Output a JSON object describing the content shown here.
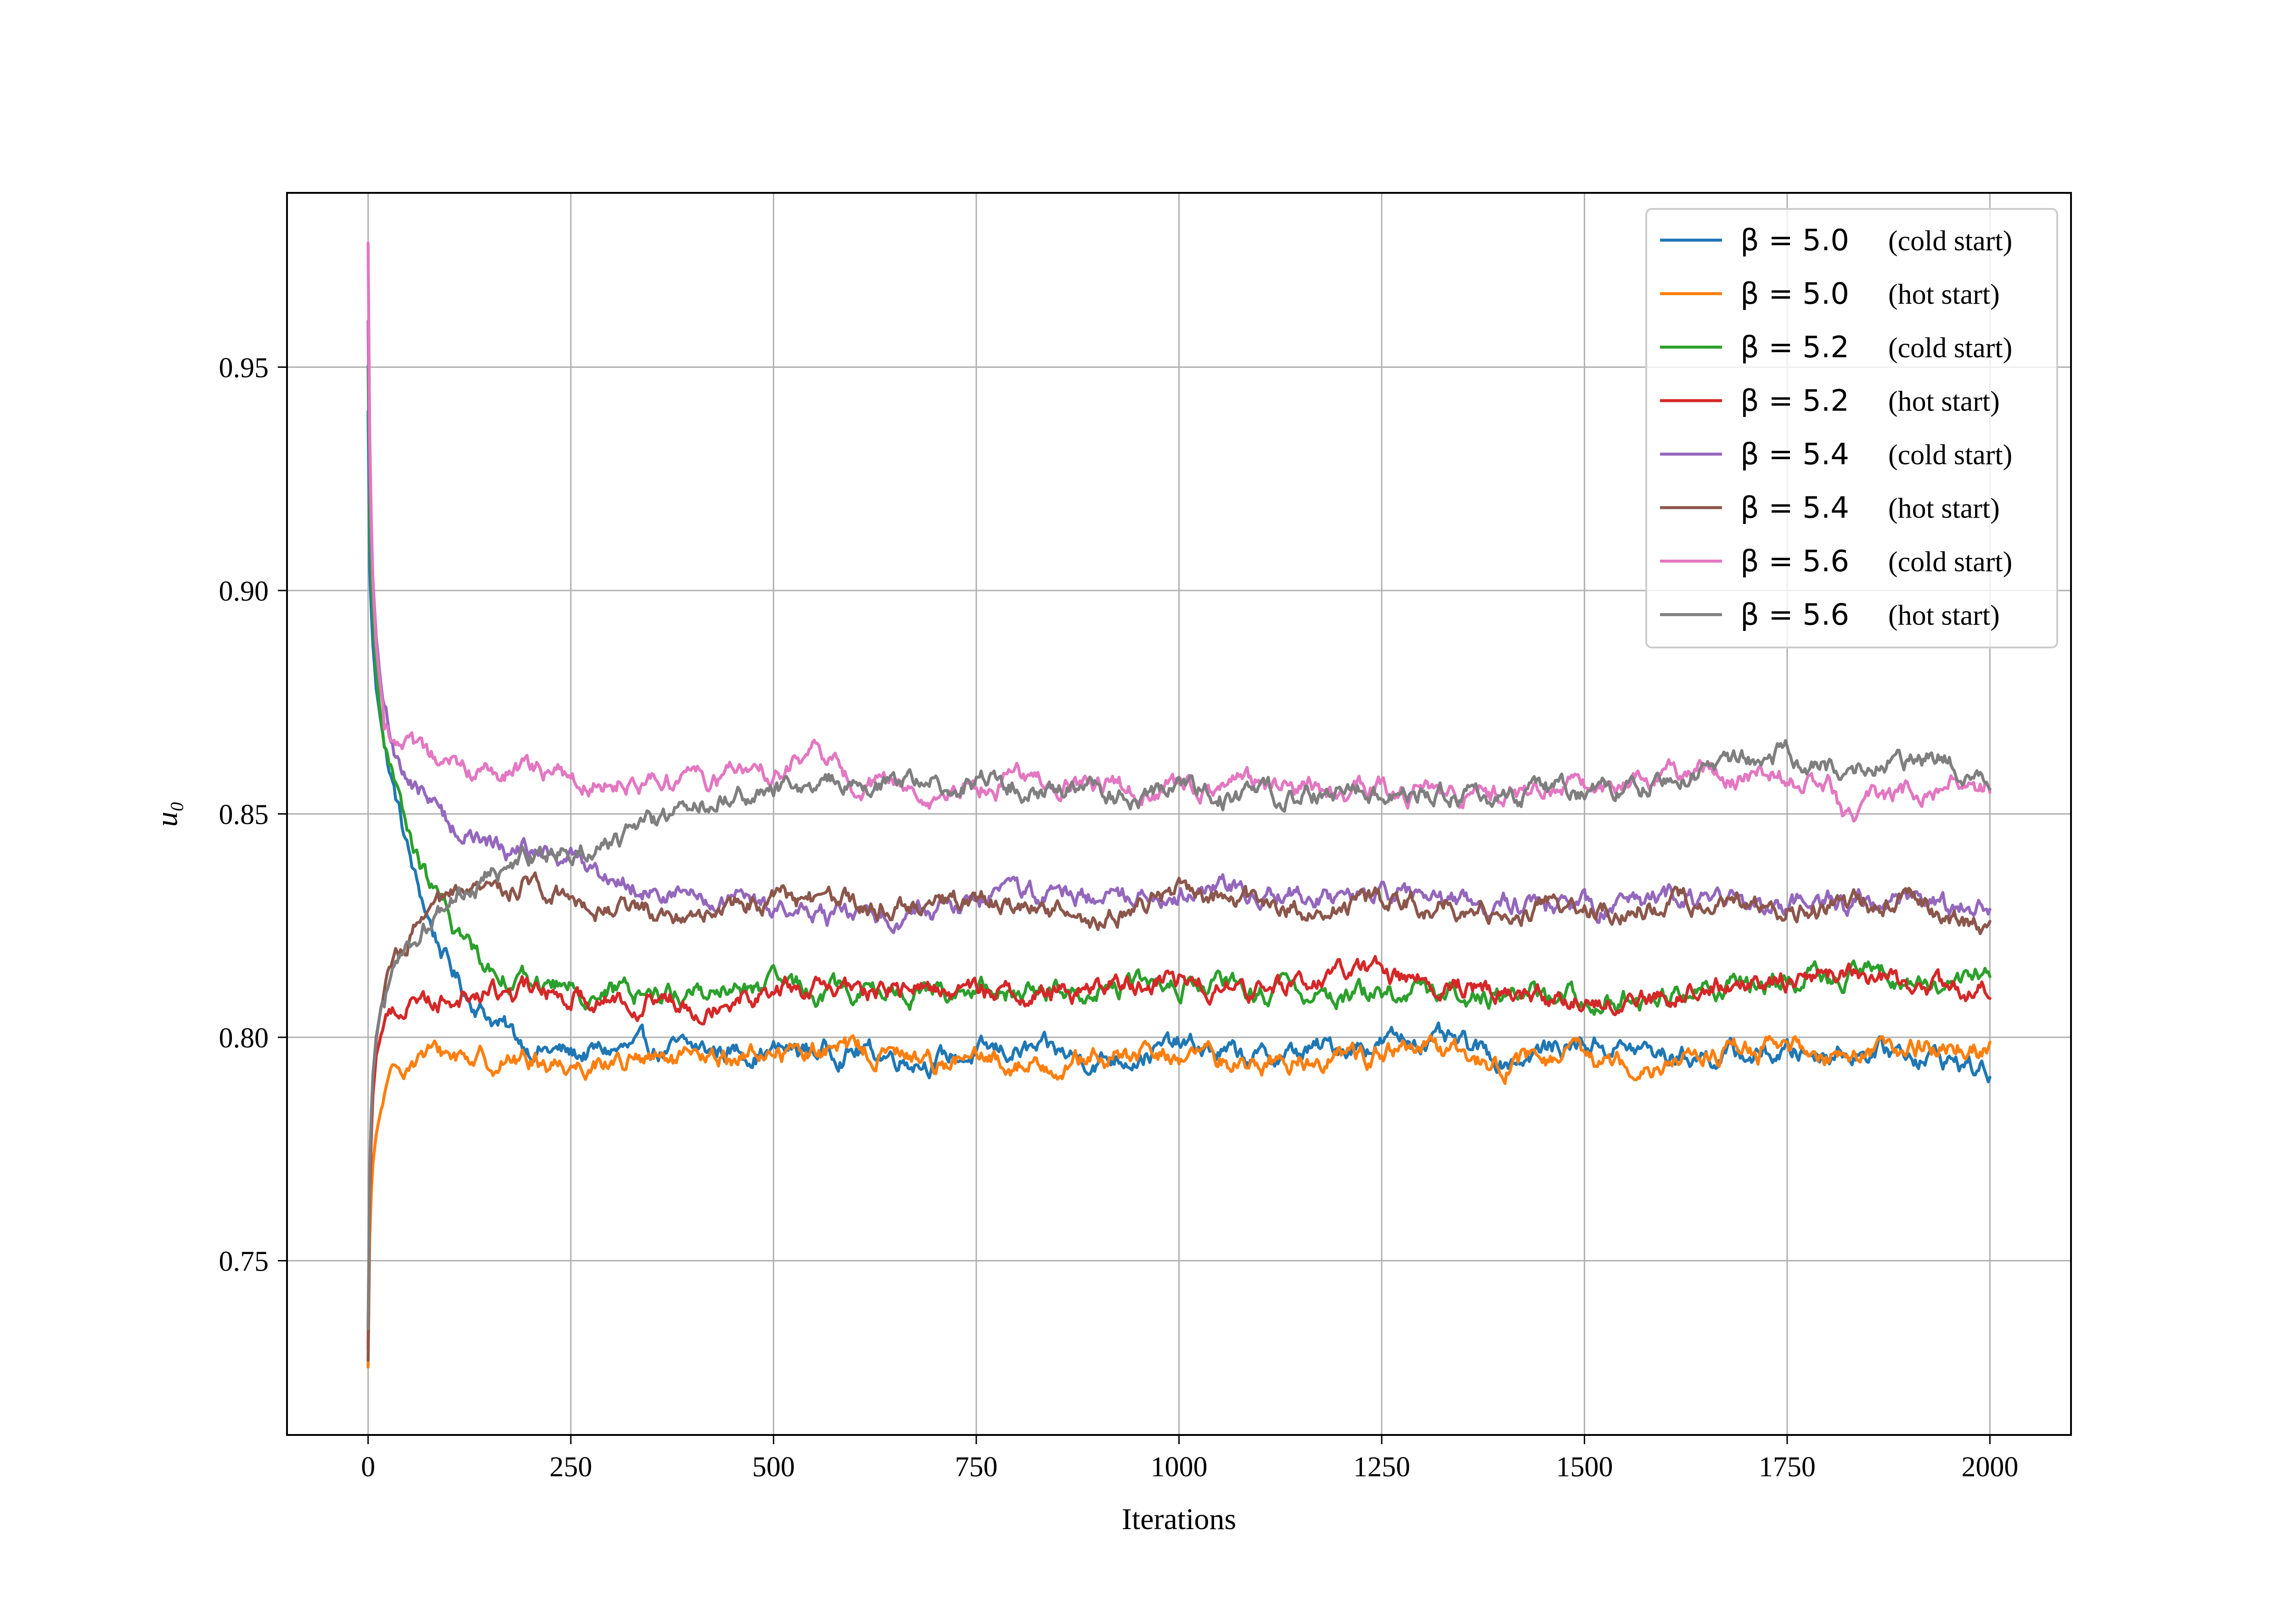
{
  "chart_data": {
    "type": "line",
    "title": "",
    "xlabel": "Iterations",
    "ylabel": "u₀",
    "xlim": [
      -100,
      2100
    ],
    "ylim": [
      0.711,
      0.989
    ],
    "xticks": [
      0,
      250,
      500,
      750,
      1000,
      1250,
      1500,
      1750,
      2000
    ],
    "xtick_labels": [
      "0",
      "250",
      "500",
      "750",
      "1000",
      "1250",
      "1500",
      "1750",
      "2000"
    ],
    "yticks": [
      0.75,
      0.8,
      0.85,
      0.9,
      0.95
    ],
    "ytick_labels": [
      "0.75",
      "0.80",
      "0.85",
      "0.90",
      "0.95"
    ],
    "grid": true,
    "legend_position": "top-right",
    "series": [
      {
        "name": "β = 5.0",
        "note": "(cold start)",
        "color": "#1f77b4",
        "x": [
          0,
          2,
          5,
          10,
          15,
          20,
          30,
          40,
          50,
          60,
          80,
          100,
          120,
          150,
          180,
          200,
          250,
          300,
          400,
          500,
          600,
          700,
          800,
          900,
          1000,
          1100,
          1200,
          1300,
          1400,
          1500,
          1600,
          1700,
          1800,
          1900,
          1950,
          2000
        ],
        "y": [
          0.94,
          0.905,
          0.89,
          0.878,
          0.872,
          0.866,
          0.857,
          0.849,
          0.841,
          0.834,
          0.824,
          0.816,
          0.81,
          0.805,
          0.8,
          0.798,
          0.796,
          0.797,
          0.797,
          0.797,
          0.797,
          0.795,
          0.797,
          0.795,
          0.798,
          0.795,
          0.798,
          0.8,
          0.795,
          0.799,
          0.796,
          0.796,
          0.797,
          0.797,
          0.795,
          0.792
        ]
      },
      {
        "name": "β = 5.0",
        "note": "(hot start)",
        "color": "#ff7f0e",
        "x": [
          0,
          2,
          5,
          10,
          15,
          20,
          30,
          40,
          50,
          60,
          80,
          100,
          120,
          150,
          180,
          200,
          250,
          300,
          400,
          500,
          600,
          700,
          800,
          900,
          1000,
          1100,
          1200,
          1300,
          1400,
          1500,
          1600,
          1700,
          1800,
          1900,
          1950,
          2000
        ],
        "y": [
          0.726,
          0.755,
          0.77,
          0.778,
          0.783,
          0.786,
          0.79,
          0.793,
          0.795,
          0.796,
          0.796,
          0.796,
          0.796,
          0.795,
          0.795,
          0.795,
          0.794,
          0.795,
          0.794,
          0.797,
          0.797,
          0.795,
          0.794,
          0.795,
          0.796,
          0.794,
          0.796,
          0.797,
          0.794,
          0.795,
          0.795,
          0.797,
          0.797,
          0.797,
          0.799,
          0.797
        ]
      },
      {
        "name": "β = 5.2",
        "note": "(cold start)",
        "color": "#2ca02c",
        "x": [
          0,
          2,
          5,
          10,
          15,
          20,
          30,
          40,
          50,
          60,
          80,
          100,
          120,
          150,
          180,
          200,
          250,
          300,
          400,
          500,
          600,
          700,
          800,
          900,
          1000,
          1100,
          1200,
          1300,
          1400,
          1500,
          1600,
          1700,
          1800,
          1900,
          1950,
          2000
        ],
        "y": [
          0.95,
          0.915,
          0.898,
          0.882,
          0.873,
          0.866,
          0.858,
          0.851,
          0.845,
          0.84,
          0.833,
          0.826,
          0.821,
          0.816,
          0.814,
          0.812,
          0.811,
          0.81,
          0.81,
          0.811,
          0.81,
          0.81,
          0.81,
          0.811,
          0.812,
          0.81,
          0.81,
          0.81,
          0.81,
          0.809,
          0.809,
          0.812,
          0.814,
          0.813,
          0.812,
          0.814
        ]
      },
      {
        "name": "β = 5.2",
        "note": "(hot start)",
        "color": "#d62728",
        "x": [
          0,
          2,
          5,
          10,
          15,
          20,
          30,
          40,
          50,
          60,
          80,
          100,
          120,
          150,
          180,
          200,
          250,
          300,
          400,
          500,
          600,
          700,
          800,
          900,
          1000,
          1100,
          1200,
          1300,
          1400,
          1500,
          1600,
          1700,
          1800,
          1900,
          1950,
          2000
        ],
        "y": [
          0.73,
          0.765,
          0.785,
          0.796,
          0.8,
          0.803,
          0.806,
          0.807,
          0.808,
          0.809,
          0.809,
          0.809,
          0.81,
          0.81,
          0.81,
          0.81,
          0.81,
          0.809,
          0.808,
          0.811,
          0.81,
          0.811,
          0.81,
          0.811,
          0.813,
          0.81,
          0.815,
          0.813,
          0.811,
          0.808,
          0.809,
          0.812,
          0.815,
          0.812,
          0.81,
          0.81
        ]
      },
      {
        "name": "β = 5.4",
        "note": "(cold start)",
        "color": "#9467bd",
        "x": [
          0,
          2,
          5,
          10,
          15,
          20,
          30,
          40,
          50,
          60,
          80,
          100,
          120,
          150,
          180,
          200,
          250,
          300,
          400,
          500,
          600,
          700,
          800,
          900,
          1000,
          1100,
          1200,
          1300,
          1400,
          1500,
          1600,
          1700,
          1800,
          1900,
          1950,
          2000
        ],
        "y": [
          0.96,
          0.925,
          0.905,
          0.889,
          0.88,
          0.873,
          0.866,
          0.861,
          0.858,
          0.856,
          0.852,
          0.848,
          0.846,
          0.843,
          0.842,
          0.841,
          0.84,
          0.836,
          0.831,
          0.829,
          0.826,
          0.829,
          0.832,
          0.832,
          0.833,
          0.833,
          0.831,
          0.831,
          0.83,
          0.829,
          0.831,
          0.829,
          0.83,
          0.83,
          0.828,
          0.831
        ]
      },
      {
        "name": "β = 5.4",
        "note": "(hot start)",
        "color": "#8c564b",
        "x": [
          0,
          2,
          5,
          10,
          15,
          20,
          30,
          40,
          50,
          60,
          80,
          100,
          120,
          150,
          180,
          200,
          250,
          300,
          400,
          500,
          600,
          700,
          800,
          900,
          1000,
          1100,
          1200,
          1300,
          1400,
          1500,
          1600,
          1700,
          1800,
          1900,
          1950,
          2000
        ],
        "y": [
          0.728,
          0.77,
          0.79,
          0.8,
          0.806,
          0.81,
          0.815,
          0.818,
          0.821,
          0.824,
          0.828,
          0.83,
          0.831,
          0.832,
          0.834,
          0.835,
          0.832,
          0.829,
          0.828,
          0.831,
          0.83,
          0.83,
          0.83,
          0.826,
          0.833,
          0.829,
          0.829,
          0.83,
          0.829,
          0.828,
          0.83,
          0.829,
          0.829,
          0.83,
          0.827,
          0.824
        ]
      },
      {
        "name": "β = 5.6",
        "note": "(cold start)",
        "color": "#e377c2",
        "x": [
          0,
          2,
          5,
          10,
          15,
          20,
          30,
          40,
          50,
          60,
          80,
          100,
          120,
          150,
          180,
          200,
          250,
          300,
          400,
          500,
          550,
          600,
          700,
          800,
          900,
          1000,
          1100,
          1200,
          1300,
          1400,
          1500,
          1600,
          1700,
          1800,
          1820,
          1900,
          1950,
          2000
        ],
        "y": [
          0.978,
          0.935,
          0.905,
          0.888,
          0.879,
          0.873,
          0.867,
          0.865,
          0.864,
          0.862,
          0.861,
          0.86,
          0.86,
          0.86,
          0.859,
          0.859,
          0.858,
          0.858,
          0.858,
          0.859,
          0.864,
          0.857,
          0.855,
          0.857,
          0.856,
          0.855,
          0.856,
          0.855,
          0.855,
          0.854,
          0.856,
          0.86,
          0.859,
          0.857,
          0.85,
          0.855,
          0.856,
          0.856
        ]
      },
      {
        "name": "β = 5.6",
        "note": "(hot start)",
        "color": "#7f7f7f",
        "x": [
          0,
          2,
          5,
          10,
          15,
          20,
          30,
          40,
          50,
          60,
          80,
          100,
          120,
          150,
          180,
          200,
          250,
          300,
          350,
          400,
          450,
          500,
          550,
          600,
          700,
          800,
          900,
          1000,
          1100,
          1200,
          1300,
          1400,
          1500,
          1600,
          1700,
          1750,
          1800,
          1900,
          1950,
          2000
        ],
        "y": [
          0.735,
          0.77,
          0.79,
          0.8,
          0.806,
          0.81,
          0.815,
          0.818,
          0.821,
          0.823,
          0.827,
          0.83,
          0.833,
          0.836,
          0.838,
          0.84,
          0.843,
          0.844,
          0.847,
          0.852,
          0.854,
          0.855,
          0.856,
          0.857,
          0.857,
          0.857,
          0.854,
          0.855,
          0.853,
          0.855,
          0.856,
          0.854,
          0.855,
          0.857,
          0.862,
          0.864,
          0.86,
          0.861,
          0.862,
          0.858
        ]
      }
    ]
  }
}
